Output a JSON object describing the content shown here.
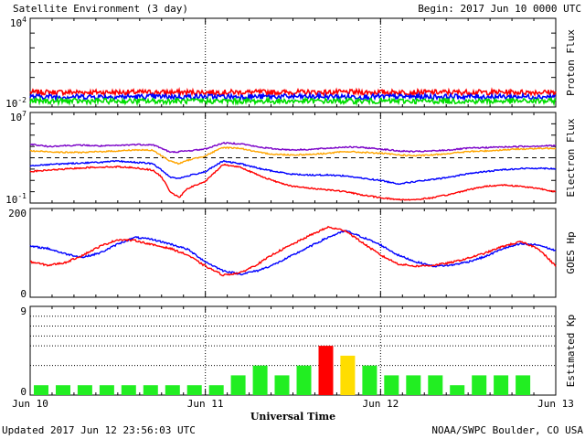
{
  "header": {
    "title": "Satellite Environment (3 day)",
    "begin": "Begin:  2017 Jun 10 0000 UTC"
  },
  "footer": {
    "updated": "Updated 2017 Jun 12 23:56:03 UTC",
    "credit": "NOAA/SWPC Boulder, CO USA"
  },
  "colors": {
    "red": "#ff0000",
    "blue": "#0000ff",
    "green": "#00dd00",
    "purple": "#7a00c8",
    "orange": "#ffa500",
    "kp_green": "#22ee22",
    "kp_yellow": "#ffdd00",
    "kp_red": "#ff0000"
  },
  "chart_data": [
    {
      "type": "line",
      "panel": "proton",
      "ylabel": "Proton Flux",
      "yscale": "log",
      "ylim": [
        0.01,
        10000
      ],
      "ytick_labels": [
        "10^4",
        "10^-2"
      ],
      "threshold": 10,
      "x_ticks": [
        "Jun 10",
        "Jun 11",
        "Jun 12",
        "Jun 13"
      ],
      "series": [
        {
          "name": "",
          "color": "#ff0000",
          "level": 0.1
        },
        {
          "name": "",
          "color": "#0000ff",
          "level": 0.05
        },
        {
          "name": "",
          "color": "#00dd00",
          "level": 0.025
        }
      ]
    },
    {
      "type": "line",
      "panel": "electron",
      "ylabel": "Electron Flux",
      "yscale": "log",
      "ylim": [
        0.1,
        10000000
      ],
      "ytick_labels": [
        "10^7",
        "10^-1"
      ],
      "threshold": 1000,
      "x": [
        0,
        0.1,
        0.2,
        0.3,
        0.4,
        0.5,
        0.6,
        0.7,
        0.75,
        0.8,
        0.85,
        0.9,
        1.0,
        1.1,
        1.2,
        1.3,
        1.4,
        1.5,
        1.6,
        1.7,
        1.8,
        1.9,
        2.0,
        2.1,
        2.2,
        2.3,
        2.4,
        2.5,
        2.6,
        2.7,
        2.8,
        2.9,
        3.0
      ],
      "series": [
        {
          "name": "",
          "color": "#7a00c8",
          "values": [
            16000,
            10000,
            12000,
            13000,
            11000,
            12000,
            15000,
            14000,
            7000,
            3000,
            3500,
            4000,
            6000,
            20000,
            18000,
            9000,
            6000,
            5000,
            5500,
            7000,
            9000,
            8000,
            6000,
            4000,
            3500,
            4000,
            5000,
            7000,
            8000,
            9000,
            10000,
            11000,
            12000
          ]
        },
        {
          "name": "",
          "color": "#ffa500",
          "values": [
            4000,
            3500,
            3000,
            3000,
            3500,
            4000,
            5000,
            4500,
            1500,
            500,
            300,
            600,
            1500,
            8000,
            7000,
            3000,
            2000,
            1800,
            2000,
            2500,
            3500,
            3000,
            2500,
            1800,
            1500,
            1800,
            2500,
            3500,
            4000,
            5000,
            6000,
            6500,
            7000
          ]
        },
        {
          "name": "",
          "color": "#0000ff",
          "values": [
            200,
            250,
            300,
            350,
            400,
            500,
            400,
            300,
            80,
            20,
            15,
            25,
            60,
            500,
            300,
            120,
            60,
            35,
            30,
            30,
            25,
            15,
            10,
            5,
            8,
            12,
            20,
            40,
            60,
            90,
            110,
            120,
            110
          ]
        },
        {
          "name": "",
          "color": "#ff0000",
          "values": [
            60,
            80,
            100,
            130,
            150,
            160,
            130,
            80,
            20,
            1,
            0.3,
            2,
            8,
            250,
            150,
            30,
            8,
            3,
            2,
            1.5,
            1,
            0.5,
            0.3,
            0.2,
            0.2,
            0.3,
            0.6,
            1.5,
            3,
            4,
            3,
            2,
            1
          ]
        }
      ]
    },
    {
      "type": "line",
      "panel": "goes-hp",
      "ylabel": "GOES Hp",
      "ylim": [
        0,
        200
      ],
      "ytick_labels": [
        "200",
        "0"
      ],
      "x": [
        0,
        0.1,
        0.2,
        0.3,
        0.4,
        0.5,
        0.6,
        0.7,
        0.8,
        0.9,
        1.0,
        1.1,
        1.2,
        1.3,
        1.4,
        1.5,
        1.6,
        1.7,
        1.8,
        1.9,
        2.0,
        2.1,
        2.2,
        2.3,
        2.4,
        2.5,
        2.6,
        2.7,
        2.8,
        2.9,
        3.0
      ],
      "series": [
        {
          "name": "",
          "color": "#0000ff",
          "values": [
            115,
            110,
            98,
            90,
            100,
            120,
            135,
            130,
            120,
            108,
            80,
            60,
            52,
            60,
            75,
            95,
            115,
            135,
            150,
            135,
            118,
            95,
            80,
            70,
            72,
            80,
            92,
            110,
            120,
            118,
            105
          ]
        },
        {
          "name": "",
          "color": "#ff0000",
          "values": [
            80,
            72,
            78,
            95,
            115,
            130,
            128,
            118,
            110,
            95,
            70,
            50,
            55,
            75,
            100,
            120,
            140,
            158,
            150,
            122,
            95,
            75,
            70,
            72,
            78,
            88,
            100,
            115,
            125,
            110,
            70
          ]
        }
      ]
    },
    {
      "type": "bar",
      "panel": "kp",
      "ylabel": "Estimated Kp",
      "ylim": [
        0,
        9
      ],
      "ytick_labels": [
        "9",
        "0"
      ],
      "values": [
        1,
        1,
        1,
        1,
        1,
        1,
        1,
        1,
        1,
        2,
        3,
        2,
        3,
        5,
        4,
        3,
        2,
        2,
        2,
        1,
        2,
        2,
        2
      ],
      "bar_colors": [
        "#22ee22",
        "#22ee22",
        "#22ee22",
        "#22ee22",
        "#22ee22",
        "#22ee22",
        "#22ee22",
        "#22ee22",
        "#22ee22",
        "#22ee22",
        "#22ee22",
        "#22ee22",
        "#22ee22",
        "#ff0000",
        "#ffdd00",
        "#22ee22",
        "#22ee22",
        "#22ee22",
        "#22ee22",
        "#22ee22",
        "#22ee22",
        "#22ee22",
        "#22ee22"
      ],
      "x_ticks": [
        "Jun 10",
        "Jun 11",
        "Jun 12",
        "Jun 13"
      ],
      "xlabel": "Universal Time"
    }
  ]
}
